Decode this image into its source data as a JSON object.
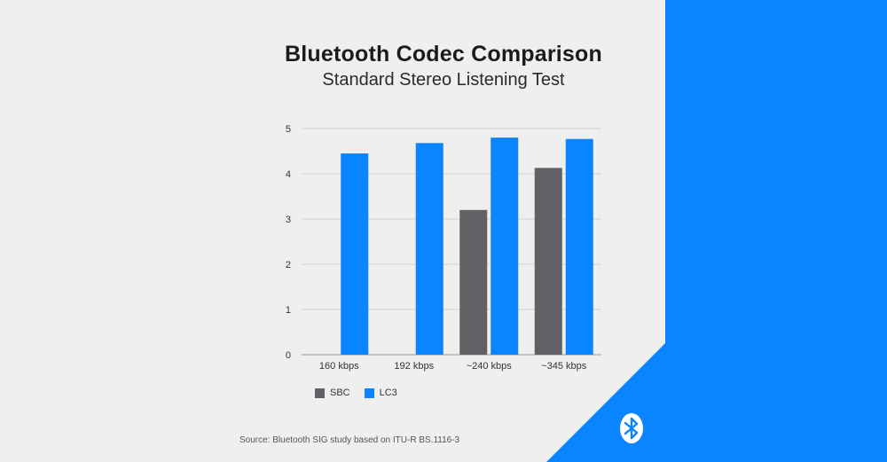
{
  "title": "Bluetooth Codec Comparison",
  "subtitle": "Standard Stereo Listening Test",
  "source": "Source: Bluetooth SIG study based on ITU-R BS.1116-3",
  "colors": {
    "blue": "#0a84ff",
    "gray": "#616165",
    "accent_shape": "#0a84ff",
    "background": "#efefef"
  },
  "logo_icon": "bluetooth-icon",
  "chart_data": {
    "type": "bar",
    "title": "Bluetooth Codec Comparison",
    "subtitle": "Standard Stereo Listening Test",
    "categories": [
      "160 kbps",
      "192 kbps",
      "~240 kbps",
      "~345 kbps"
    ],
    "series": [
      {
        "name": "SBC",
        "color": "#616165",
        "values": [
          null,
          null,
          3.2,
          4.13
        ]
      },
      {
        "name": "LC3",
        "color": "#0a84ff",
        "values": [
          4.45,
          4.68,
          4.8,
          4.77
        ]
      }
    ],
    "yticks": [
      "0",
      "1",
      "2",
      "3",
      "4",
      "5"
    ],
    "ylim": [
      0,
      5
    ],
    "grid": true,
    "legend_position": "bottom-left"
  }
}
